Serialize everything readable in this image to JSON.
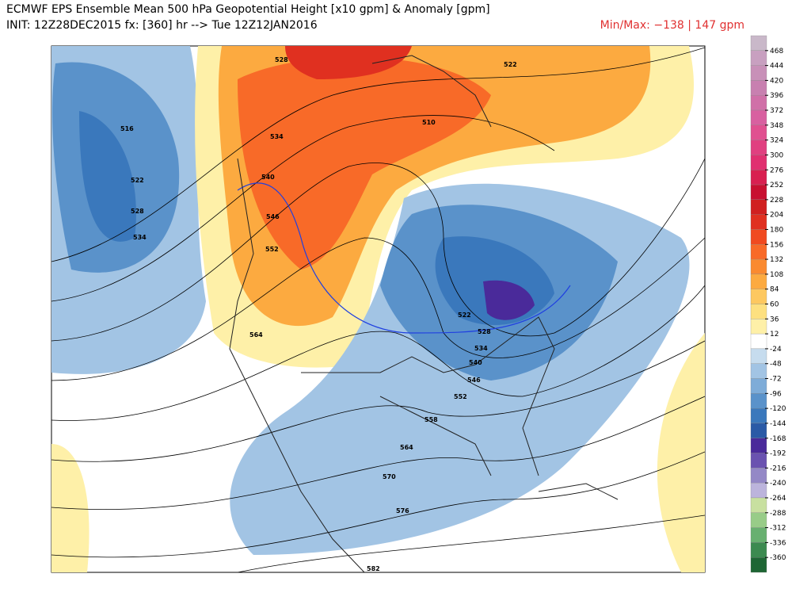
{
  "header": {
    "title": "ECMWF EPS Ensemble Mean 500 hPa Geopotential Height [x10 gpm] & Anomaly [gpm]",
    "init": "INIT: 12Z28DEC2015 fx: [360] hr --> Tue 12Z12JAN2016",
    "minmax": "Min/Max:  −138 |  147 gpm"
  },
  "colorbar": {
    "labels": [
      "468",
      "444",
      "420",
      "396",
      "372",
      "348",
      "324",
      "300",
      "276",
      "252",
      "228",
      "204",
      "180",
      "156",
      "132",
      "108",
      "84",
      "60",
      "36",
      "12",
      "-24",
      "-48",
      "-72",
      "-96",
      "-120",
      "-144",
      "-168",
      "-192",
      "-216",
      "-240",
      "-264",
      "-288",
      "-312",
      "-336",
      "-360"
    ],
    "colors": [
      "#c9b8c9",
      "#c8a0c0",
      "#c890b8",
      "#c880b0",
      "#d070a8",
      "#d860a0",
      "#e05090",
      "#e04080",
      "#e03070",
      "#d82050",
      "#c81030",
      "#d02020",
      "#e03020",
      "#f04a20",
      "#f86a28",
      "#fa8a30",
      "#fcaa40",
      "#fdc860",
      "#fde080",
      "#fef0a8",
      "#ffffff",
      "#c6dcee",
      "#a2c4e4",
      "#7eacd8",
      "#5a92ca",
      "#3a78bc",
      "#2a5aa6",
      "#4a2a9a",
      "#6a52b0",
      "#9488c6",
      "#bcb4dc",
      "#c8e0a0",
      "#98cc88",
      "#68b070",
      "#3c8a50",
      "#1e6634"
    ]
  },
  "contour_labels": [
    "528",
    "522",
    "516",
    "522",
    "528",
    "534",
    "534",
    "540",
    "546",
    "552",
    "564",
    "510",
    "522",
    "528",
    "534",
    "540",
    "546",
    "552",
    "558",
    "564",
    "570",
    "576",
    "582"
  ]
}
